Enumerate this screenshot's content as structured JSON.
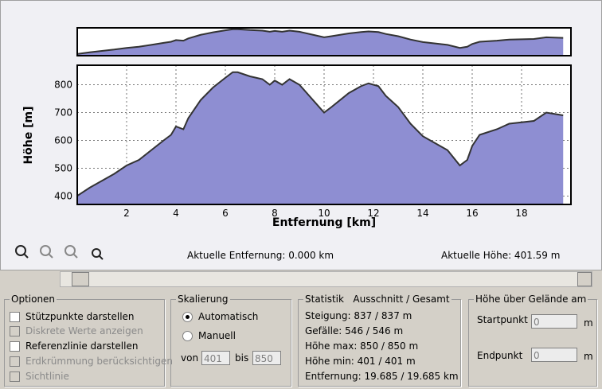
{
  "chart_data": {
    "type": "area",
    "xlabel": "Entfernung [km]",
    "ylabel": "Höhe [m]",
    "x": [
      0,
      0.5,
      1,
      1.5,
      2,
      2.5,
      3,
      3.5,
      3.8,
      4,
      4.3,
      4.5,
      5,
      5.5,
      6,
      6.3,
      6.5,
      7,
      7.5,
      7.8,
      8,
      8.3,
      8.6,
      9,
      9.5,
      10,
      10.3,
      11,
      11.5,
      11.8,
      12.2,
      12.5,
      13,
      13.5,
      14,
      14.5,
      15,
      15.5,
      15.8,
      16,
      16.3,
      17,
      17.5,
      18,
      18.5,
      19,
      19.685
    ],
    "values": [
      401,
      430,
      455,
      480,
      510,
      530,
      565,
      600,
      620,
      650,
      640,
      680,
      745,
      790,
      825,
      845,
      845,
      830,
      820,
      800,
      815,
      800,
      820,
      800,
      750,
      700,
      720,
      770,
      795,
      805,
      795,
      760,
      720,
      660,
      615,
      590,
      565,
      510,
      530,
      580,
      620,
      640,
      660,
      665,
      670,
      700,
      690
    ],
    "xlim": [
      0,
      20
    ],
    "ylim": [
      370,
      870
    ],
    "xticks": [
      2,
      4,
      6,
      8,
      10,
      12,
      14,
      16,
      18
    ],
    "yticks": [
      400,
      500,
      600,
      700,
      800
    ],
    "grid": true,
    "color": "#8e8ed2"
  },
  "status": {
    "distance": "Aktuelle Entfernung: 0.000 km",
    "height": "Aktuelle Höhe: 401.59 m"
  },
  "options": {
    "title": "Optionen",
    "items": [
      "Stützpunkte darstellen",
      "Diskrete Werte anzeigen",
      "Referenzlinie darstellen",
      "Erdkrümmung berücksichtigen",
      "Sichtlinie"
    ]
  },
  "scaling": {
    "title": "Skalierung",
    "automatic": "Automatisch",
    "manual": "Manuell",
    "from_label": "von",
    "from": "401",
    "to_label": "bis",
    "to": "850"
  },
  "statistics": {
    "title": "Statistik   Ausschnitt / Gesamt",
    "lines": [
      "Steigung: 837 / 837 m",
      "Gefälle: 546 / 546 m",
      "Höhe max: 850 / 850 m",
      "Höhe min: 401 / 401 m",
      "Entfernung: 19.685 / 19.685 km"
    ]
  },
  "terrain": {
    "title": "Höhe über Gelände am",
    "start_label": "Startpunkt",
    "start": "0",
    "end_label": "Endpunkt",
    "end": "0",
    "unit": "m"
  }
}
